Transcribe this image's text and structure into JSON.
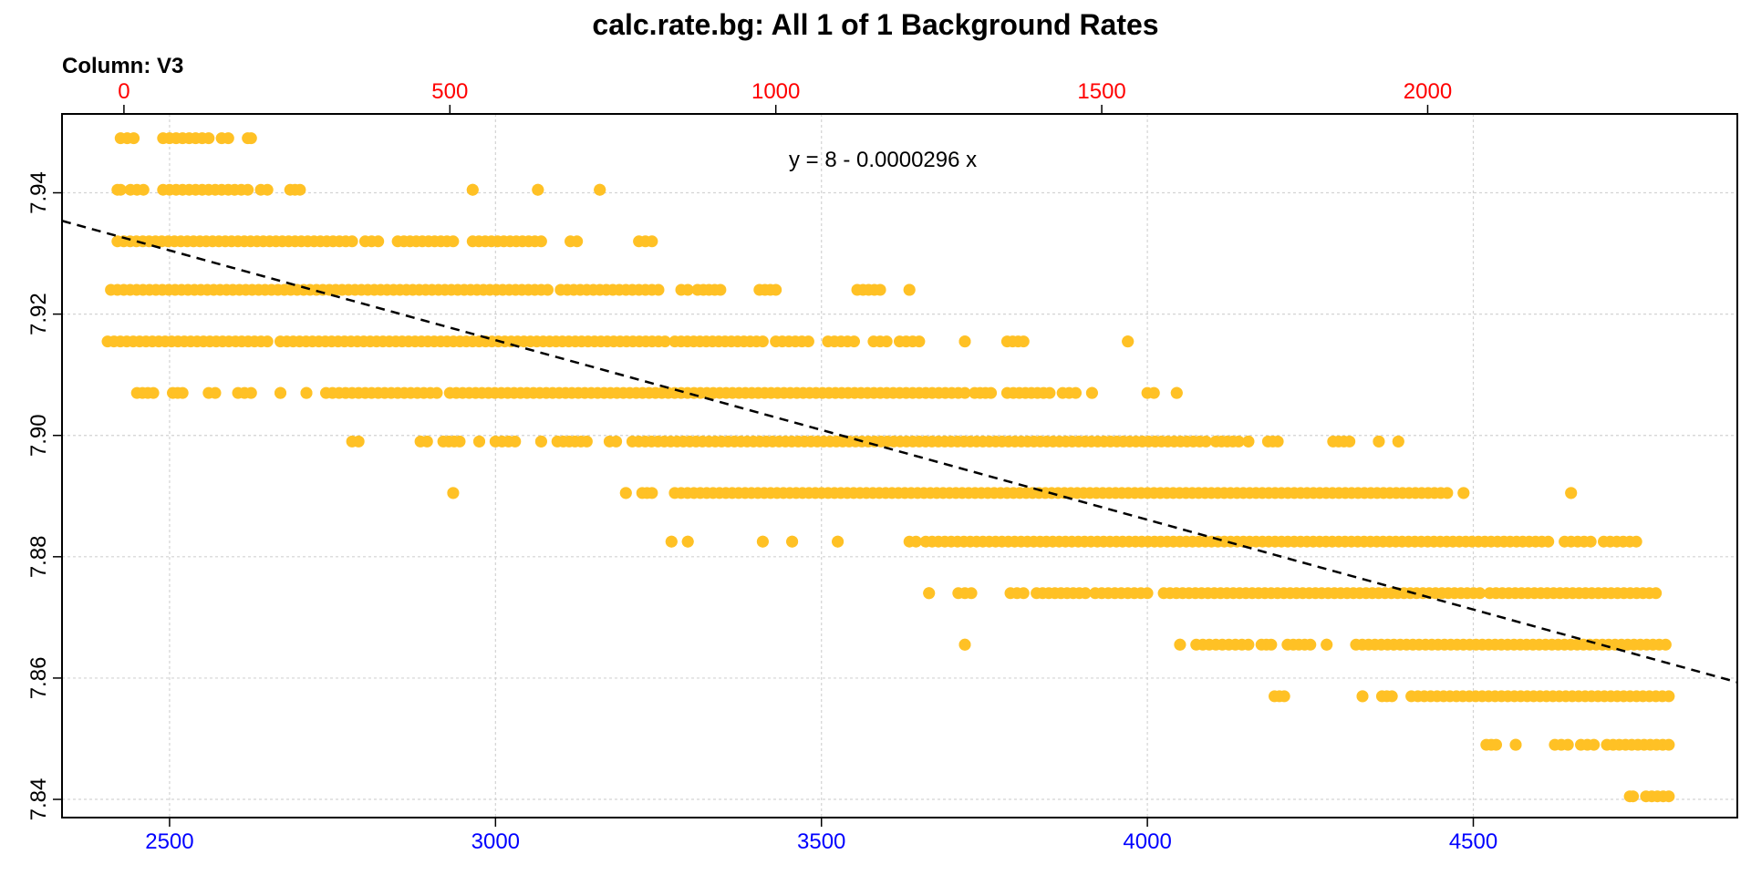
{
  "chart_data": {
    "type": "scatter",
    "title": "calc.rate.bg: All 1 of 1 Background Rates",
    "subtitle": "Column: V3",
    "equation": "y = 8 - 0.0000296 x",
    "x_bottom": {
      "range": [
        2335,
        4905
      ],
      "ticks": [
        2500,
        3000,
        3500,
        4000,
        4500
      ],
      "tick_color": "#0000ff"
    },
    "x_top": {
      "range": [
        -95,
        2475
      ],
      "ticks": [
        0,
        500,
        1000,
        1500,
        2000
      ],
      "tick_color": "#ff0000"
    },
    "y": {
      "range": [
        7.837,
        7.953
      ],
      "ticks": [
        7.84,
        7.86,
        7.88,
        7.9,
        7.92,
        7.94
      ],
      "tick_labels": [
        "7.84",
        "7.86",
        "7.88",
        "7.90",
        "7.92",
        "7.94"
      ]
    },
    "grid": true,
    "point_color": "#FFC125",
    "fit_line": {
      "intercept": 8.0045,
      "slope": -2.96e-05,
      "color": "#000000",
      "style": "dashed"
    },
    "bands": [
      {
        "y": 7.949,
        "segments": [
          [
            2425,
            2445
          ],
          [
            2490,
            2520
          ],
          [
            2530,
            2560
          ],
          [
            2580,
            2590
          ],
          [
            2620,
            2625
          ]
        ]
      },
      {
        "y": 7.9405,
        "segments": [
          [
            2420,
            2425
          ],
          [
            2440,
            2460
          ],
          [
            2490,
            2570
          ],
          [
            2580,
            2620
          ],
          [
            2640,
            2650
          ],
          [
            2685,
            2700
          ],
          [
            2965,
            2965
          ],
          [
            3065,
            3065
          ],
          [
            3160,
            3160
          ]
        ]
      },
      {
        "y": 7.932,
        "segments": [
          [
            2420,
            2780
          ],
          [
            2800,
            2820
          ],
          [
            2850,
            2935
          ],
          [
            2965,
            3070
          ],
          [
            3115,
            3125
          ],
          [
            3220,
            3240
          ]
        ]
      },
      {
        "y": 7.924,
        "segments": [
          [
            2410,
            3080
          ],
          [
            3100,
            3230
          ],
          [
            3240,
            3250
          ],
          [
            3285,
            3295
          ],
          [
            3310,
            3345
          ],
          [
            3405,
            3430
          ],
          [
            3555,
            3590
          ],
          [
            3635,
            3635
          ]
        ]
      },
      {
        "y": 7.9155,
        "segments": [
          [
            2405,
            2650
          ],
          [
            2670,
            3260
          ],
          [
            3275,
            3410
          ],
          [
            3430,
            3480
          ],
          [
            3510,
            3550
          ],
          [
            3580,
            3600
          ],
          [
            3620,
            3650
          ],
          [
            3720,
            3720
          ],
          [
            3785,
            3810
          ],
          [
            3970,
            3970
          ]
        ]
      },
      {
        "y": 7.907,
        "segments": [
          [
            2450,
            2475
          ],
          [
            2505,
            2520
          ],
          [
            2560,
            2570
          ],
          [
            2605,
            2625
          ],
          [
            2670,
            2670
          ],
          [
            2710,
            2710
          ],
          [
            2740,
            2910
          ],
          [
            2930,
            3610
          ],
          [
            3620,
            3720
          ],
          [
            3735,
            3760
          ],
          [
            3785,
            3850
          ],
          [
            3870,
            3890
          ],
          [
            3915,
            3915
          ],
          [
            4000,
            4010
          ],
          [
            4045,
            4045
          ]
        ]
      },
      {
        "y": 7.899,
        "segments": [
          [
            2780,
            2790
          ],
          [
            2885,
            2895
          ],
          [
            2920,
            2945
          ],
          [
            2975,
            2975
          ],
          [
            3000,
            3030
          ],
          [
            3070,
            3070
          ],
          [
            3095,
            3140
          ],
          [
            3175,
            3185
          ],
          [
            3210,
            4090
          ],
          [
            4105,
            4140
          ],
          [
            4155,
            4155
          ],
          [
            4185,
            4200
          ],
          [
            4285,
            4310
          ],
          [
            4355,
            4355
          ],
          [
            4385,
            4385
          ]
        ]
      },
      {
        "y": 7.8905,
        "segments": [
          [
            2935,
            2935
          ],
          [
            3200,
            3200
          ],
          [
            3225,
            3240
          ],
          [
            3275,
            4010
          ],
          [
            4020,
            4460
          ],
          [
            4485,
            4485
          ],
          [
            4650,
            4650
          ]
        ]
      },
      {
        "y": 7.8825,
        "segments": [
          [
            3270,
            3270
          ],
          [
            3295,
            3295
          ],
          [
            3410,
            3410
          ],
          [
            3455,
            3455
          ],
          [
            3525,
            3525
          ],
          [
            3635,
            3645
          ],
          [
            3660,
            4615
          ],
          [
            4640,
            4680
          ],
          [
            4700,
            4750
          ]
        ]
      },
      {
        "y": 7.874,
        "segments": [
          [
            3665,
            3665
          ],
          [
            3710,
            3730
          ],
          [
            3790,
            3810
          ],
          [
            3830,
            3905
          ],
          [
            3920,
            4000
          ],
          [
            4025,
            4510
          ],
          [
            4525,
            4780
          ]
        ]
      },
      {
        "y": 7.8655,
        "segments": [
          [
            3720,
            3720
          ],
          [
            4050,
            4050
          ],
          [
            4075,
            4115
          ],
          [
            4125,
            4155
          ],
          [
            4175,
            4190
          ],
          [
            4215,
            4250
          ],
          [
            4275,
            4275
          ],
          [
            4320,
            4795
          ]
        ]
      },
      {
        "y": 7.857,
        "segments": [
          [
            4195,
            4210
          ],
          [
            4330,
            4330
          ],
          [
            4360,
            4375
          ],
          [
            4405,
            4780
          ],
          [
            4790,
            4800
          ]
        ]
      },
      {
        "y": 7.849,
        "segments": [
          [
            4520,
            4535
          ],
          [
            4565,
            4565
          ],
          [
            4625,
            4645
          ],
          [
            4665,
            4685
          ],
          [
            4705,
            4800
          ]
        ]
      },
      {
        "y": 7.8405,
        "segments": [
          [
            4740,
            4745
          ],
          [
            4765,
            4800
          ]
        ]
      }
    ]
  }
}
